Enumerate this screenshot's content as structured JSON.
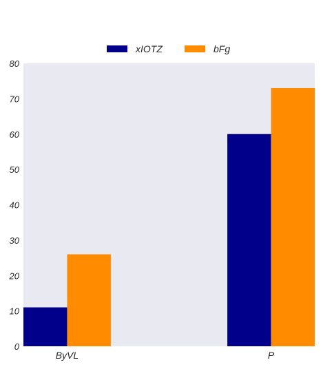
{
  "chart_data": {
    "type": "bar",
    "categories": [
      "ByVL",
      "P"
    ],
    "series": [
      {
        "name": "xIOTZ",
        "values": [
          11,
          60
        ],
        "color": "#00008b"
      },
      {
        "name": "bFg",
        "values": [
          26,
          73
        ],
        "color": "#ff8c00"
      }
    ],
    "title": "",
    "xlabel": "",
    "ylabel": "",
    "ylim": [
      0,
      80
    ],
    "yticks": [
      0,
      10,
      20,
      30,
      40,
      50,
      60,
      70,
      80
    ],
    "grid": false,
    "legend_position": "top-center",
    "plot_background": "#e9e9f2"
  }
}
